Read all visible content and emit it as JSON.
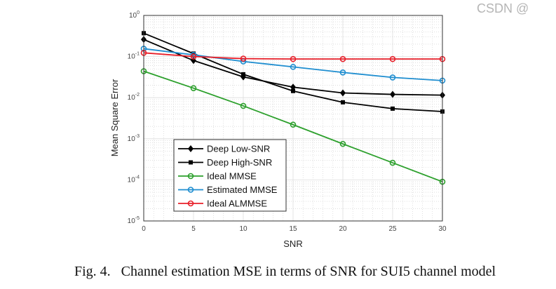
{
  "caption": "Fig. 4.   Channel estimation MSE in terms of SNR for SUI5 channel model",
  "watermark": "CSDN @",
  "chart_data": {
    "type": "line",
    "title": "",
    "xlabel": "SNR",
    "ylabel": "Mean Square Error",
    "xlim": [
      0,
      30
    ],
    "ylim": [
      1e-05,
      1
    ],
    "yscale": "log",
    "grid": true,
    "legend_position": "bottom-left",
    "x": [
      0,
      5,
      10,
      15,
      20,
      25,
      30
    ],
    "xticks": [
      "0",
      "5",
      "10",
      "15",
      "20",
      "25",
      "30"
    ],
    "yticks": [
      {
        "base": "10",
        "exp": "0",
        "value": 1
      },
      {
        "base": "10",
        "exp": "-1",
        "value": 0.1
      },
      {
        "base": "10",
        "exp": "-2",
        "value": 0.01
      },
      {
        "base": "10",
        "exp": "-3",
        "value": 0.001
      },
      {
        "base": "10",
        "exp": "-4",
        "value": 0.0001
      },
      {
        "base": "10",
        "exp": "-5",
        "value": 1e-05
      }
    ],
    "series": [
      {
        "name": "Deep Low-SNR",
        "color": "#000000",
        "marker": "diamond",
        "values": [
          0.26,
          0.08,
          0.032,
          0.018,
          0.013,
          0.012,
          0.0115
        ]
      },
      {
        "name": "Deep High-SNR",
        "color": "#000000",
        "marker": "square",
        "values": [
          0.37,
          0.118,
          0.037,
          0.0145,
          0.0077,
          0.0054,
          0.0046
        ]
      },
      {
        "name": "Ideal MMSE",
        "color": "#2ca02c",
        "marker": "circle",
        "values": [
          0.044,
          0.017,
          0.0063,
          0.0022,
          0.00075,
          0.00026,
          9e-05
        ]
      },
      {
        "name": "Estimated MMSE",
        "color": "#1f8ed0",
        "marker": "circle",
        "values": [
          0.155,
          0.11,
          0.076,
          0.056,
          0.041,
          0.031,
          0.026
        ]
      },
      {
        "name": "Ideal ALMMSE",
        "color": "#e8202a",
        "marker": "circle",
        "values": [
          0.123,
          0.1,
          0.089,
          0.087,
          0.087,
          0.087,
          0.087
        ]
      }
    ]
  }
}
